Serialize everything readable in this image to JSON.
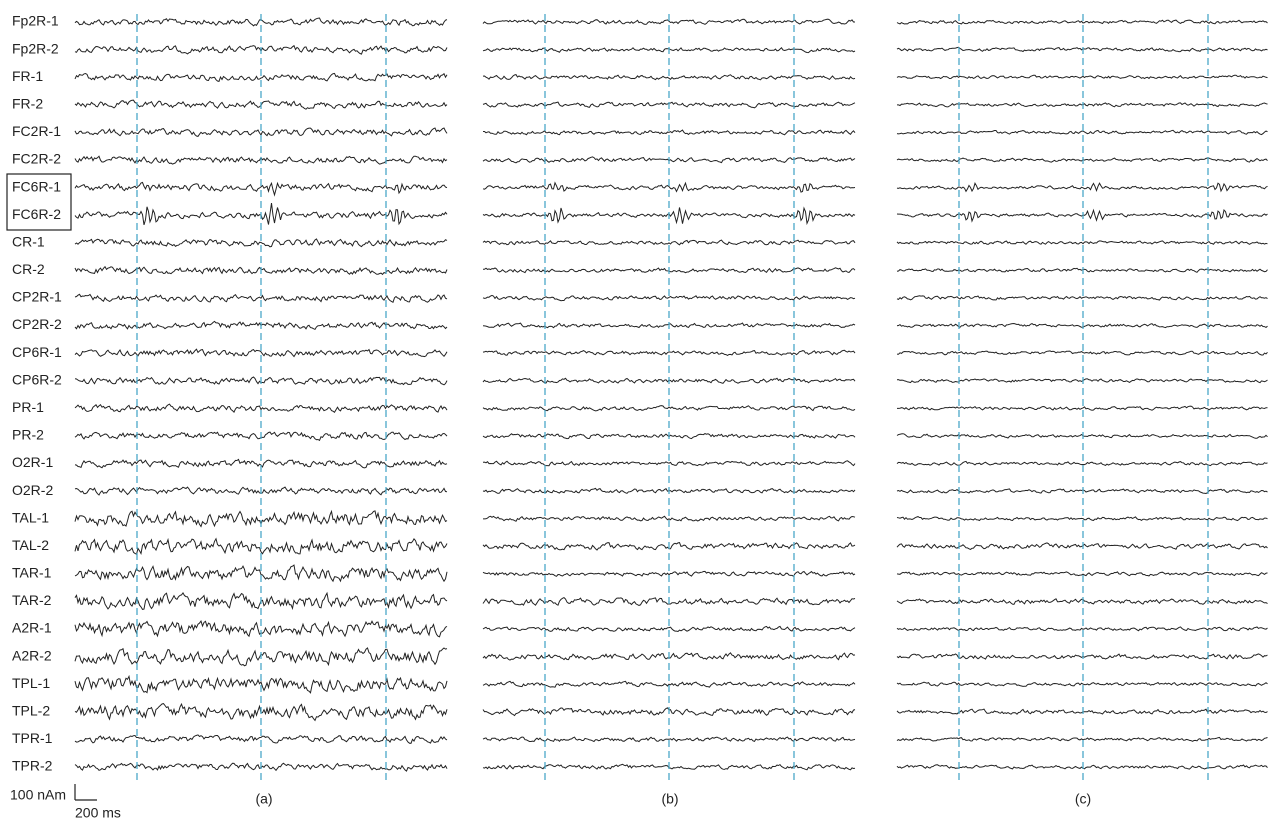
{
  "channels": [
    "Fp2R-1",
    "Fp2R-2",
    "FR-1",
    "FR-2",
    "FC2R-1",
    "FC2R-2",
    "FC6R-1",
    "FC6R-2",
    "CR-1",
    "CR-2",
    "CP2R-1",
    "CP2R-2",
    "CP6R-1",
    "CP6R-2",
    "PR-1",
    "PR-2",
    "O2R-1",
    "O2R-2",
    "TAL-1",
    "TAL-2",
    "TAR-1",
    "TAR-2",
    "A2R-1",
    "A2R-2",
    "TPL-1",
    "TPL-2",
    "TPR-1",
    "TPR-2"
  ],
  "panels": [
    "(a)",
    "(b)",
    "(c)"
  ],
  "scale_bar": {
    "amplitude": "100 nAm",
    "time": "200 ms"
  }
}
